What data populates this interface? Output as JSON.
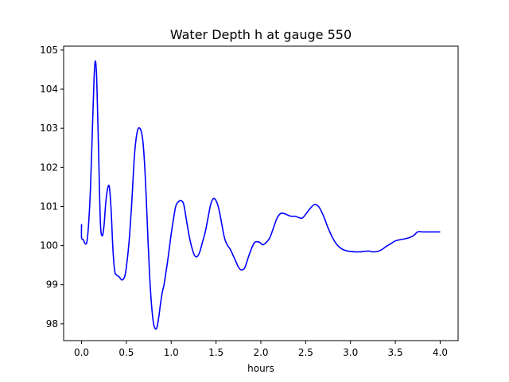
{
  "chart_data": {
    "type": "line",
    "title": "Water Depth h at gauge 550",
    "xlabel": "hours",
    "ylabel": "",
    "xlim": [
      -0.2,
      4.2
    ],
    "ylim": [
      97.57,
      105.1
    ],
    "xticks": [
      0.0,
      0.5,
      1.0,
      1.5,
      2.0,
      2.5,
      3.0,
      3.5,
      4.0
    ],
    "xtick_labels": [
      "0.0",
      "0.5",
      "1.0",
      "1.5",
      "2.0",
      "2.5",
      "3.0",
      "3.5",
      "4.0"
    ],
    "yticks": [
      98,
      99,
      100,
      101,
      102,
      103,
      104,
      105
    ],
    "ytick_labels": [
      "98",
      "99",
      "100",
      "101",
      "102",
      "103",
      "104",
      "105"
    ],
    "grid": false,
    "legend": "none",
    "series": [
      {
        "color": "#0000ff",
        "x": [
          0.0,
          0.0,
          0.02,
          0.04,
          0.06,
          0.08,
          0.1,
          0.12,
          0.14,
          0.155,
          0.17,
          0.19,
          0.21,
          0.23,
          0.25,
          0.27,
          0.29,
          0.31,
          0.33,
          0.35,
          0.37,
          0.39,
          0.42,
          0.45,
          0.48,
          0.5,
          0.53,
          0.56,
          0.59,
          0.62,
          0.65,
          0.68,
          0.7,
          0.72,
          0.74,
          0.76,
          0.78,
          0.8,
          0.82,
          0.84,
          0.86,
          0.88,
          0.9,
          0.92,
          0.94,
          0.96,
          0.98,
          1.0,
          1.02,
          1.05,
          1.08,
          1.11,
          1.14,
          1.17,
          1.2,
          1.23,
          1.26,
          1.29,
          1.32,
          1.35,
          1.38,
          1.41,
          1.44,
          1.47,
          1.5,
          1.53,
          1.56,
          1.58,
          1.6,
          1.63,
          1.66,
          1.69,
          1.72,
          1.75,
          1.78,
          1.82,
          1.86,
          1.9,
          1.93,
          1.96,
          1.99,
          2.02,
          2.06,
          2.1,
          2.14,
          2.18,
          2.22,
          2.26,
          2.3,
          2.34,
          2.38,
          2.42,
          2.46,
          2.5,
          2.55,
          2.6,
          2.65,
          2.7,
          2.75,
          2.8,
          2.85,
          2.9,
          2.95,
          3.0,
          3.05,
          3.1,
          3.15,
          3.2,
          3.25,
          3.3,
          3.35,
          3.4,
          3.45,
          3.5,
          3.55,
          3.6,
          3.65,
          3.7,
          3.75,
          3.8,
          3.85,
          3.9,
          3.95,
          4.0
        ],
        "y": [
          100.55,
          100.2,
          100.15,
          100.05,
          100.1,
          100.6,
          101.5,
          102.9,
          104.3,
          104.72,
          104.2,
          102.4,
          100.6,
          100.25,
          100.5,
          101.1,
          101.45,
          101.5,
          100.9,
          99.9,
          99.35,
          99.25,
          99.2,
          99.12,
          99.2,
          99.45,
          100.1,
          101.1,
          102.3,
          102.9,
          103.0,
          102.75,
          102.2,
          101.3,
          100.2,
          99.2,
          98.5,
          98.05,
          97.88,
          97.9,
          98.15,
          98.5,
          98.8,
          99.0,
          99.3,
          99.6,
          99.95,
          100.3,
          100.6,
          101.0,
          101.12,
          101.15,
          101.05,
          100.65,
          100.25,
          99.95,
          99.75,
          99.72,
          99.85,
          100.1,
          100.35,
          100.7,
          101.05,
          101.2,
          101.15,
          100.95,
          100.6,
          100.35,
          100.15,
          100.0,
          99.9,
          99.75,
          99.6,
          99.45,
          99.38,
          99.43,
          99.7,
          99.95,
          100.08,
          100.1,
          100.08,
          100.02,
          100.08,
          100.2,
          100.45,
          100.7,
          100.82,
          100.82,
          100.78,
          100.75,
          100.75,
          100.72,
          100.7,
          100.8,
          100.95,
          101.05,
          100.98,
          100.75,
          100.45,
          100.2,
          100.02,
          99.92,
          99.87,
          99.85,
          99.84,
          99.84,
          99.85,
          99.86,
          99.84,
          99.85,
          99.9,
          99.98,
          100.05,
          100.12,
          100.15,
          100.17,
          100.2,
          100.25,
          100.35,
          100.35,
          100.35,
          100.35,
          100.35,
          100.35
        ]
      }
    ]
  }
}
